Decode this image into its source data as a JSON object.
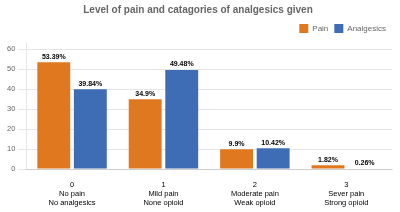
{
  "chart_data": {
    "type": "bar",
    "title": "Level of pain and catagories of analgesics given",
    "categories": [
      [
        "0",
        "No pain",
        "No analgesics"
      ],
      [
        "1",
        "Mild pain",
        "None opioid"
      ],
      [
        "2",
        "Moderate pain",
        "Weak opioid"
      ],
      [
        "3",
        "Sever pain",
        "Strong opioid"
      ]
    ],
    "series": [
      {
        "name": "Pain",
        "color": "#E07820",
        "values": [
          53.39,
          34.9,
          9.9,
          1.82
        ],
        "value_labels": [
          "53.39%",
          "34.9%",
          "9.9%",
          "1.82%"
        ]
      },
      {
        "name": "Analgesics",
        "color": "#3E6DB5",
        "values": [
          39.84,
          49.48,
          10.42,
          0.26
        ],
        "value_labels": [
          "39.84%",
          "49.48%",
          "10.42%",
          "0.26%"
        ]
      }
    ],
    "ylim": [
      0,
      63
    ],
    "yticks": [
      0,
      10,
      20,
      30,
      40,
      50,
      60
    ],
    "grid": true,
    "legend": "upper right",
    "data_labels": true
  }
}
